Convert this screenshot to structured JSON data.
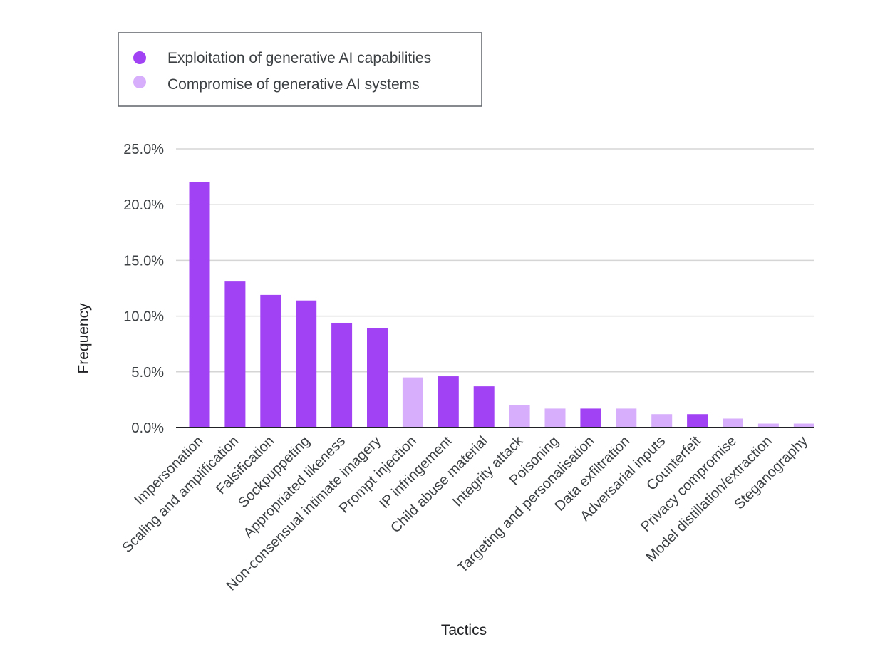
{
  "chart_data": {
    "type": "bar",
    "title": "",
    "xlabel": "Tactics",
    "ylabel": "Frequency",
    "ylim": [
      0,
      25
    ],
    "yticks": [
      0,
      5,
      10,
      15,
      20,
      25
    ],
    "ytick_labels": [
      "0.0%",
      "5.0%",
      "10.0%",
      "15.0%",
      "20.0%",
      "25.0%"
    ],
    "grid": true,
    "legend_position": "top-left",
    "series_defs": [
      {
        "key": "exploitation",
        "name": "Exploitation of generative AI capabilities",
        "color": "#a142f4"
      },
      {
        "key": "compromise",
        "name": "Compromise of generative AI systems",
        "color": "#d7aefb"
      }
    ],
    "categories": [
      "Impersonation",
      "Scaling and amplification",
      "Falsification",
      "Sockpuppeting",
      "Appropriated likeness",
      "Non-consensual intimate imagery",
      "Prompt injection",
      "IP infringement",
      "Child abuse material",
      "Integrity attack",
      "Poisoning",
      "Targeting and personalisation",
      "Data exfiltration",
      "Adversarial inputs",
      "Counterfeit",
      "Privacy compromise",
      "Model distillation/extraction",
      "Steganography"
    ],
    "values": [
      22.0,
      13.1,
      11.9,
      11.4,
      9.4,
      8.9,
      4.5,
      4.6,
      3.7,
      2.0,
      1.7,
      1.7,
      1.7,
      1.2,
      1.2,
      0.8,
      0.35,
      0.35
    ],
    "groups": [
      "exploitation",
      "exploitation",
      "exploitation",
      "exploitation",
      "exploitation",
      "exploitation",
      "compromise",
      "exploitation",
      "exploitation",
      "compromise",
      "compromise",
      "exploitation",
      "compromise",
      "compromise",
      "exploitation",
      "compromise",
      "compromise",
      "compromise"
    ]
  }
}
